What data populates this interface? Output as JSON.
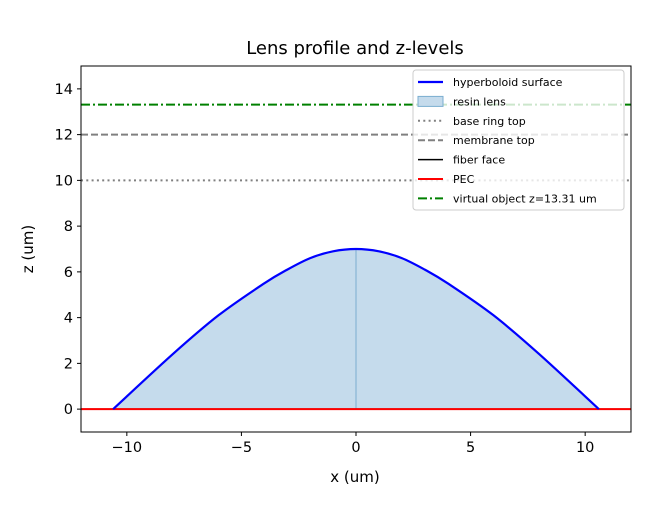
{
  "chart_data": {
    "type": "line",
    "title": "Lens profile and z-levels",
    "xlabel": "x (um)",
    "ylabel": "z (um)",
    "xlim": [
      -12,
      12
    ],
    "ylim": [
      -1,
      15
    ],
    "xticks": [
      -10,
      -5,
      0,
      5,
      10
    ],
    "xtick_labels": [
      "−10",
      "−5",
      "0",
      "5",
      "10"
    ],
    "yticks": [
      0,
      2,
      4,
      6,
      8,
      10,
      12,
      14
    ],
    "ytick_labels": [
      "0",
      "2",
      "4",
      "6",
      "8",
      "10",
      "12",
      "14"
    ],
    "grid": false,
    "legend_position": "top-right",
    "series": [
      {
        "name": "hyperboloid surface",
        "kind": "line",
        "color": "#0000ff",
        "style": "solid",
        "x": [
          -10.6,
          -8,
          -6,
          -4,
          -3,
          -2,
          -1,
          0,
          1,
          2,
          3,
          4,
          6,
          8,
          10.6
        ],
        "y": [
          0.0,
          2.4,
          4.1,
          5.5,
          6.1,
          6.6,
          6.9,
          7.0,
          6.9,
          6.6,
          6.1,
          5.5,
          4.1,
          2.4,
          0.0
        ]
      },
      {
        "name": "resin lens",
        "kind": "fill",
        "color": "#c5dbec",
        "edge_color": "#7aaed0",
        "note_axis_line_x": 0
      },
      {
        "name": "base ring top",
        "kind": "hline",
        "color": "#808080",
        "style": "dotted",
        "y": 10
      },
      {
        "name": "membrane top",
        "kind": "hline",
        "color": "#808080",
        "style": "dashed",
        "y": 12
      },
      {
        "name": "fiber face",
        "kind": "hline",
        "color": "#000000",
        "style": "solid",
        "y": 0
      },
      {
        "name": "PEC",
        "kind": "hline",
        "color": "#ff0000",
        "style": "solid",
        "y": 0
      },
      {
        "name": "virtual object z=13.31 um",
        "kind": "hline",
        "color": "#008000",
        "style": "dashdot",
        "y": 13.31
      }
    ]
  }
}
